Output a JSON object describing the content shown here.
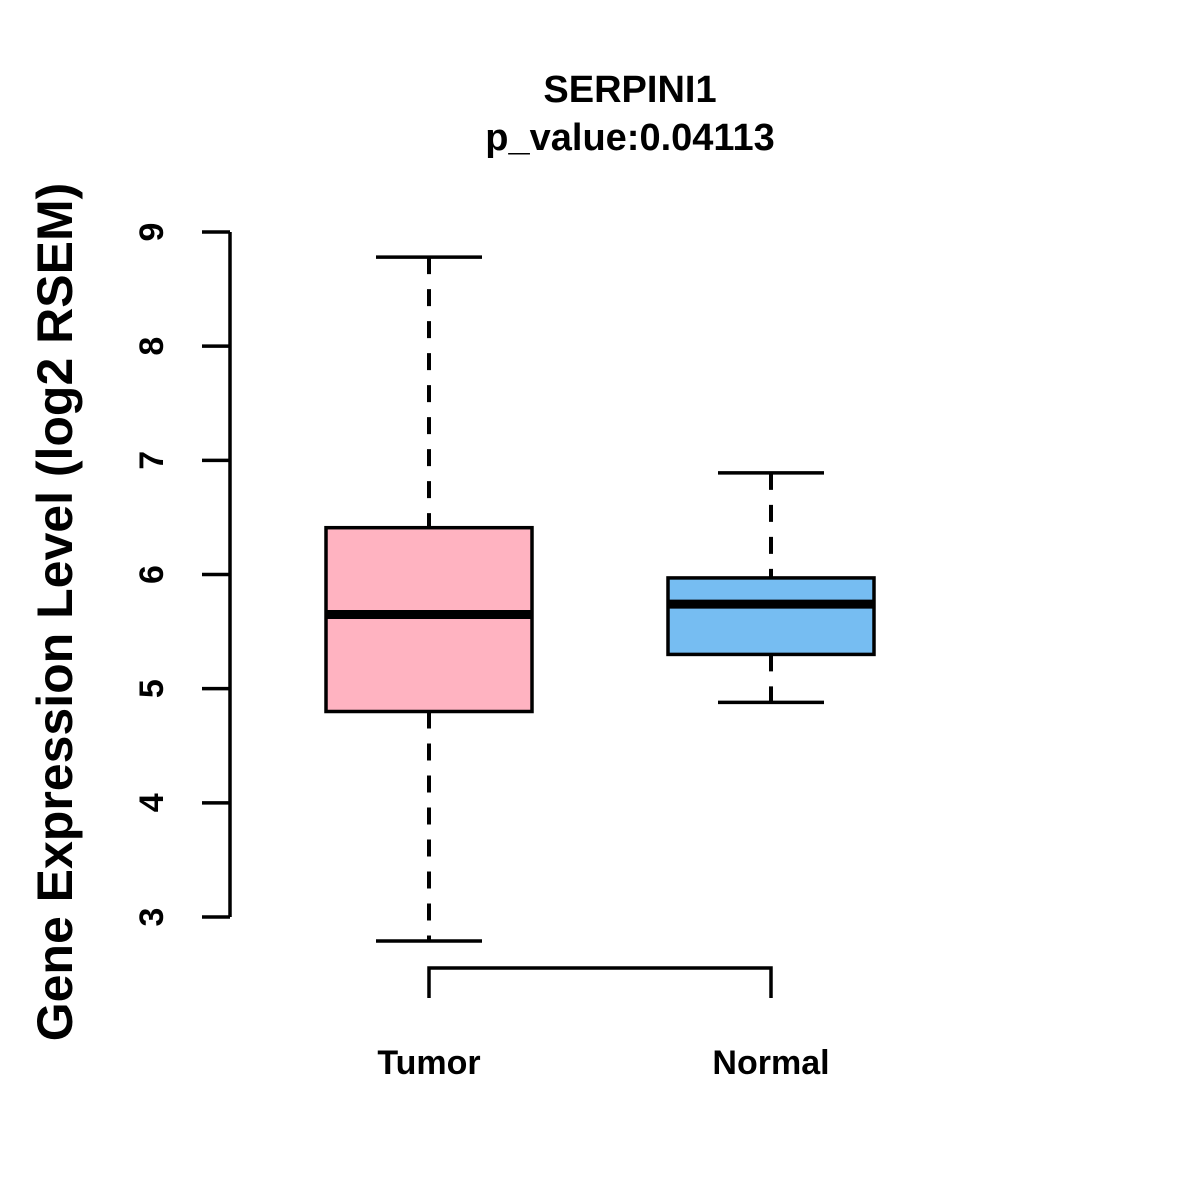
{
  "chart_data": {
    "type": "boxplot",
    "title": "SERPINI1",
    "subtitle": "p_value:0.04113",
    "p_value": 0.04113,
    "ylabel": "Gene Expression Level (log2 RSEM)",
    "xlabel": "",
    "ylim": [
      3,
      9
    ],
    "yticks": [
      3,
      4,
      5,
      6,
      7,
      8,
      9
    ],
    "grid": false,
    "legend": "none",
    "groups": [
      {
        "label": "Tumor",
        "color": "#FFB3C1",
        "lower_whisker": 2.79,
        "q1": 4.8,
        "median": 5.65,
        "q3": 6.41,
        "upper_whisker": 8.78
      },
      {
        "label": "Normal",
        "color": "#76BDF2",
        "lower_whisker": 4.88,
        "q1": 5.3,
        "median": 5.74,
        "q3": 5.97,
        "upper_whisker": 6.89
      }
    ],
    "comparison_bracket": {
      "between": [
        "Tumor",
        "Normal"
      ]
    }
  },
  "colors": {
    "stroke": "#000000",
    "background": "#ffffff"
  }
}
